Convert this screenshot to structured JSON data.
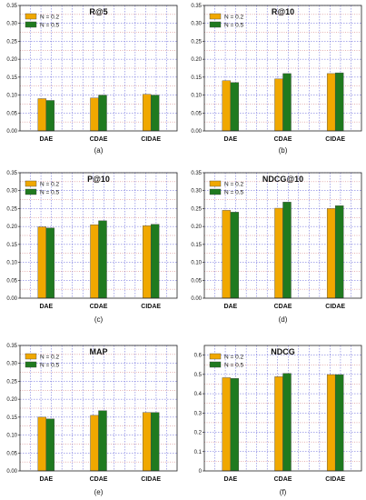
{
  "chart_data": [
    {
      "type": "bar",
      "caption": "(a)",
      "title": "R@5",
      "categories": [
        "DAE",
        "CDAE",
        "CIDAE"
      ],
      "ylim": [
        0,
        0.35
      ],
      "yticks": [
        "0.00",
        "0.05",
        "0.10",
        "0.15",
        "0.20",
        "0.25",
        "0.30",
        "0.35"
      ],
      "grid": true,
      "legend": "top-left",
      "series": [
        {
          "name": "N = 0.2",
          "color": "#f0a800",
          "values": [
            0.09,
            0.092,
            0.102
          ]
        },
        {
          "name": "N = 0.5",
          "color": "#1f7a1f",
          "values": [
            0.085,
            0.1,
            0.1
          ]
        }
      ]
    },
    {
      "type": "bar",
      "caption": "(b)",
      "title": "R@10",
      "categories": [
        "DAE",
        "CDAE",
        "CIDAE"
      ],
      "ylim": [
        0,
        0.35
      ],
      "yticks": [
        "0.00",
        "0.05",
        "0.10",
        "0.15",
        "0.20",
        "0.25",
        "0.30",
        "0.35"
      ],
      "grid": true,
      "legend": "top-left",
      "series": [
        {
          "name": "N = 0.2",
          "color": "#f0a800",
          "values": [
            0.14,
            0.145,
            0.16
          ]
        },
        {
          "name": "N = 0.5",
          "color": "#1f7a1f",
          "values": [
            0.135,
            0.16,
            0.162
          ]
        }
      ]
    },
    {
      "type": "bar",
      "caption": "(c)",
      "title": "P@10",
      "categories": [
        "DAE",
        "CDAE",
        "CIDAE"
      ],
      "ylim": [
        0,
        0.35
      ],
      "yticks": [
        "0.00",
        "0.05",
        "0.10",
        "0.15",
        "0.20",
        "0.25",
        "0.30",
        "0.35"
      ],
      "grid": true,
      "legend": "top-left",
      "series": [
        {
          "name": "N = 0.2",
          "color": "#f0a800",
          "values": [
            0.199,
            0.205,
            0.202
          ]
        },
        {
          "name": "N = 0.5",
          "color": "#1f7a1f",
          "values": [
            0.196,
            0.216,
            0.206
          ]
        }
      ]
    },
    {
      "type": "bar",
      "caption": "(d)",
      "title": "NDCG@10",
      "categories": [
        "DAE",
        "CDAE",
        "CIDAE"
      ],
      "ylim": [
        0,
        0.35
      ],
      "yticks": [
        "0.00",
        "0.05",
        "0.10",
        "0.15",
        "0.20",
        "0.25",
        "0.30",
        "0.35"
      ],
      "grid": true,
      "legend": "top-left",
      "series": [
        {
          "name": "N = 0.2",
          "color": "#f0a800",
          "values": [
            0.245,
            0.251,
            0.25
          ]
        },
        {
          "name": "N = 0.5",
          "color": "#1f7a1f",
          "values": [
            0.24,
            0.268,
            0.258
          ]
        }
      ]
    },
    {
      "type": "bar",
      "caption": "(e)",
      "title": "MAP",
      "categories": [
        "DAE",
        "CDAE",
        "CIDAE"
      ],
      "ylim": [
        0,
        0.35
      ],
      "yticks": [
        "0.00",
        "0.05",
        "0.10",
        "0.15",
        "0.20",
        "0.25",
        "0.30",
        "0.35"
      ],
      "grid": true,
      "legend": "top-left",
      "series": [
        {
          "name": "N = 0.2",
          "color": "#f0a800",
          "values": [
            0.15,
            0.155,
            0.163
          ]
        },
        {
          "name": "N = 0.5",
          "color": "#1f7a1f",
          "values": [
            0.145,
            0.168,
            0.163
          ]
        }
      ]
    },
    {
      "type": "bar",
      "caption": "(f)",
      "title": "NDCG",
      "categories": [
        "DAE",
        "CDAE",
        "CIDAE"
      ],
      "ylim": [
        0,
        0.65
      ],
      "yticks": [
        "0",
        "0.1",
        "0.2",
        "0.3",
        "0.4",
        "0.5",
        "0.6"
      ],
      "grid": true,
      "legend": "top-left",
      "series": [
        {
          "name": "N = 0.2",
          "color": "#f0a800",
          "values": [
            0.483,
            0.488,
            0.499
          ]
        },
        {
          "name": "N = 0.5",
          "color": "#1f7a1f",
          "values": [
            0.479,
            0.505,
            0.499
          ]
        }
      ]
    }
  ]
}
